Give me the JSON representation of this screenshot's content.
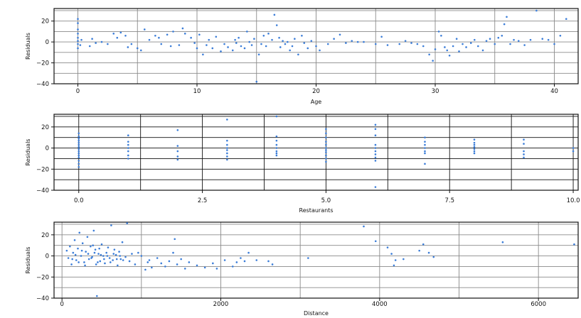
{
  "chart_data": [
    {
      "type": "scatter",
      "title": "",
      "xlabel": "Age",
      "ylabel": "Residuals",
      "xlim": [
        -2,
        42
      ],
      "ylim": [
        -40,
        32
      ],
      "xticks": [
        0,
        10,
        20,
        30,
        40
      ],
      "yticks": [
        -40,
        -20,
        0,
        20
      ],
      "grid_color": "#8a8a8a",
      "point_color": "#3b7dd8",
      "grid": true,
      "points": [
        [
          0,
          22
        ],
        [
          0,
          18
        ],
        [
          0,
          12
        ],
        [
          0,
          8
        ],
        [
          0,
          4
        ],
        [
          0,
          1
        ],
        [
          0,
          -2
        ],
        [
          0,
          -6
        ],
        [
          0.2,
          -3
        ],
        [
          0.3,
          2
        ],
        [
          1,
          -4
        ],
        [
          1.2,
          3
        ],
        [
          1.5,
          -1
        ],
        [
          2,
          0
        ],
        [
          2.5,
          -2
        ],
        [
          3,
          8
        ],
        [
          3.3,
          4
        ],
        [
          3.6,
          9
        ],
        [
          4,
          6
        ],
        [
          4.2,
          -5
        ],
        [
          4.5,
          -2
        ],
        [
          5,
          -6
        ],
        [
          5.3,
          -8
        ],
        [
          5.6,
          12
        ],
        [
          6,
          2
        ],
        [
          6.5,
          6
        ],
        [
          6.8,
          4
        ],
        [
          7,
          -2
        ],
        [
          7.5,
          7
        ],
        [
          7.8,
          -4
        ],
        [
          8,
          10
        ],
        [
          8.5,
          -3
        ],
        [
          8.8,
          13
        ],
        [
          9,
          8
        ],
        [
          9.5,
          4
        ],
        [
          9.8,
          -1
        ],
        [
          10,
          -6
        ],
        [
          10.2,
          7
        ],
        [
          10.5,
          -12
        ],
        [
          10.8,
          -3
        ],
        [
          11,
          2
        ],
        [
          11.3,
          -6
        ],
        [
          11.6,
          5
        ],
        [
          12,
          -9
        ],
        [
          12.3,
          -2
        ],
        [
          12.6,
          -5
        ],
        [
          13,
          -8
        ],
        [
          13.2,
          2
        ],
        [
          13.3,
          -1
        ],
        [
          13.5,
          4
        ],
        [
          13.7,
          -4
        ],
        [
          14,
          -6
        ],
        [
          14.2,
          10
        ],
        [
          14.4,
          0
        ],
        [
          14.6,
          -3
        ],
        [
          14.8,
          3
        ],
        [
          15,
          -38
        ],
        [
          15.2,
          -12
        ],
        [
          15.4,
          -2
        ],
        [
          15.6,
          6
        ],
        [
          15.8,
          -4
        ],
        [
          16,
          8
        ],
        [
          16.3,
          2
        ],
        [
          16.5,
          26
        ],
        [
          16.7,
          16
        ],
        [
          16.9,
          4
        ],
        [
          17,
          -5
        ],
        [
          17.2,
          1
        ],
        [
          17.4,
          -2
        ],
        [
          17.6,
          0
        ],
        [
          17.8,
          -8
        ],
        [
          18,
          -4
        ],
        [
          18.2,
          3
        ],
        [
          18.5,
          -12
        ],
        [
          18.8,
          6
        ],
        [
          19,
          -1
        ],
        [
          19.3,
          -6
        ],
        [
          19.6,
          1
        ],
        [
          20,
          -4
        ],
        [
          20.3,
          -8
        ],
        [
          21,
          -2
        ],
        [
          21.5,
          3
        ],
        [
          22,
          7
        ],
        [
          22.5,
          -1
        ],
        [
          23,
          1
        ],
        [
          23.5,
          0
        ],
        [
          24,
          0
        ],
        [
          25,
          -2
        ],
        [
          25.5,
          5
        ],
        [
          26,
          -3
        ],
        [
          27,
          -2
        ],
        [
          27.5,
          1
        ],
        [
          28,
          -1
        ],
        [
          28.5,
          -2
        ],
        [
          29,
          -4
        ],
        [
          29.5,
          -12
        ],
        [
          29.8,
          -18
        ],
        [
          30,
          -7
        ],
        [
          30.3,
          10
        ],
        [
          30.5,
          6
        ],
        [
          30.8,
          -5
        ],
        [
          31,
          -8
        ],
        [
          31.2,
          -13
        ],
        [
          31.5,
          -4
        ],
        [
          31.8,
          3
        ],
        [
          32,
          -9
        ],
        [
          32.3,
          -2
        ],
        [
          32.6,
          -5
        ],
        [
          33,
          -1
        ],
        [
          33.3,
          2
        ],
        [
          33.6,
          -4
        ],
        [
          34,
          -8
        ],
        [
          34.3,
          1
        ],
        [
          34.6,
          3
        ],
        [
          35,
          -2
        ],
        [
          35.3,
          4
        ],
        [
          35.6,
          6
        ],
        [
          35.8,
          17
        ],
        [
          36,
          24
        ],
        [
          36.3,
          -2
        ],
        [
          36.6,
          2
        ],
        [
          37,
          1
        ],
        [
          37.5,
          -3
        ],
        [
          38,
          2
        ],
        [
          38.5,
          30
        ],
        [
          39,
          3
        ],
        [
          39.5,
          2
        ],
        [
          40,
          -2
        ],
        [
          40.5,
          6
        ],
        [
          41,
          22
        ]
      ]
    },
    {
      "type": "scatter",
      "title": "",
      "xlabel": "Restaurants",
      "ylabel": "Residuals",
      "xlim": [
        -0.5,
        10.1
      ],
      "ylim": [
        -40,
        32
      ],
      "xticks": [
        0.0,
        2.5,
        5.0,
        7.5,
        10.0
      ],
      "xtick_labels": [
        "0.0",
        "2.5",
        "5.0",
        "7.5",
        "10.0"
      ],
      "yticks": [
        -40,
        -20,
        0,
        20
      ],
      "grid_color": "#111111",
      "point_color": "#3b7dd8",
      "grid": true,
      "points": [
        [
          0,
          14
        ],
        [
          0,
          11
        ],
        [
          0,
          9
        ],
        [
          0,
          7
        ],
        [
          0,
          5
        ],
        [
          0,
          3
        ],
        [
          0,
          1
        ],
        [
          0,
          -1
        ],
        [
          0,
          -3
        ],
        [
          0,
          -5
        ],
        [
          0,
          -7
        ],
        [
          0,
          -9
        ],
        [
          0,
          -12
        ],
        [
          0,
          -15
        ],
        [
          0,
          -18
        ],
        [
          1,
          12
        ],
        [
          1,
          6
        ],
        [
          1,
          3
        ],
        [
          1,
          0
        ],
        [
          1,
          -3
        ],
        [
          1,
          -7
        ],
        [
          1,
          -10
        ],
        [
          2,
          17
        ],
        [
          2,
          2
        ],
        [
          2,
          -3
        ],
        [
          2,
          -8
        ],
        [
          2,
          -11
        ],
        [
          3,
          27
        ],
        [
          3,
          7
        ],
        [
          3,
          3
        ],
        [
          3,
          0
        ],
        [
          3,
          -2
        ],
        [
          3,
          -5
        ],
        [
          3,
          -8
        ],
        [
          3,
          -11
        ],
        [
          4,
          30
        ],
        [
          4,
          11
        ],
        [
          4,
          7
        ],
        [
          4,
          3
        ],
        [
          4,
          0
        ],
        [
          4,
          -3
        ],
        [
          4,
          -5
        ],
        [
          4,
          -7
        ],
        [
          5,
          18
        ],
        [
          5,
          14
        ],
        [
          5,
          10
        ],
        [
          5,
          6
        ],
        [
          5,
          3
        ],
        [
          5,
          0
        ],
        [
          5,
          -2
        ],
        [
          5,
          -4
        ],
        [
          5,
          -7
        ],
        [
          5,
          -10
        ],
        [
          5,
          -13
        ],
        [
          6,
          22
        ],
        [
          6,
          18
        ],
        [
          6,
          12
        ],
        [
          6,
          3
        ],
        [
          6,
          0
        ],
        [
          6,
          -3
        ],
        [
          6,
          -6
        ],
        [
          6,
          -9
        ],
        [
          6,
          -12
        ],
        [
          6,
          -37
        ],
        [
          7,
          10
        ],
        [
          7,
          6
        ],
        [
          7,
          3
        ],
        [
          7,
          0
        ],
        [
          7,
          -3
        ],
        [
          7,
          -5
        ],
        [
          7,
          -15
        ],
        [
          8,
          8
        ],
        [
          8,
          5
        ],
        [
          8,
          3
        ],
        [
          8,
          1
        ],
        [
          8,
          -1
        ],
        [
          8,
          -3
        ],
        [
          8,
          -5
        ],
        [
          9,
          8
        ],
        [
          9,
          4
        ],
        [
          9,
          -3
        ],
        [
          9,
          -6
        ],
        [
          9,
          -9
        ],
        [
          10,
          0
        ],
        [
          10,
          -3
        ]
      ]
    },
    {
      "type": "scatter",
      "title": "",
      "xlabel": "Distance",
      "ylabel": "Residuals",
      "xlim": [
        -100,
        6500
      ],
      "ylim": [
        -40,
        32
      ],
      "xticks": [
        0,
        2000,
        4000,
        6000
      ],
      "yticks": [
        -40,
        -20,
        0,
        20
      ],
      "grid_color": "#8a8a8a",
      "point_color": "#3b7dd8",
      "grid": true,
      "points": [
        [
          60,
          5
        ],
        [
          80,
          -2
        ],
        [
          100,
          9
        ],
        [
          120,
          -8
        ],
        [
          140,
          3
        ],
        [
          160,
          15
        ],
        [
          180,
          -4
        ],
        [
          200,
          7
        ],
        [
          220,
          22
        ],
        [
          240,
          0
        ],
        [
          260,
          12
        ],
        [
          280,
          -6
        ],
        [
          300,
          4
        ],
        [
          320,
          18
        ],
        [
          340,
          -3
        ],
        [
          360,
          9
        ],
        [
          380,
          -1
        ],
        [
          400,
          24
        ],
        [
          420,
          6
        ],
        [
          440,
          -38
        ],
        [
          460,
          2
        ],
        [
          480,
          -5
        ],
        [
          500,
          11
        ],
        [
          520,
          0
        ],
        [
          540,
          -7
        ],
        [
          560,
          3
        ],
        [
          580,
          8
        ],
        [
          600,
          -2
        ],
        [
          620,
          29
        ],
        [
          640,
          -4
        ],
        [
          660,
          6
        ],
        [
          680,
          1
        ],
        [
          700,
          -9
        ],
        [
          720,
          4
        ],
        [
          740,
          -3
        ],
        [
          760,
          13
        ],
        [
          800,
          -1
        ],
        [
          820,
          31
        ],
        [
          850,
          -5
        ],
        [
          880,
          2
        ],
        [
          920,
          -8
        ],
        [
          960,
          3
        ],
        [
          1000,
          0
        ],
        [
          1050,
          -13
        ],
        [
          1080,
          -6
        ],
        [
          1100,
          -4
        ],
        [
          1130,
          -11
        ],
        [
          1200,
          -2
        ],
        [
          1250,
          -7
        ],
        [
          1300,
          -10
        ],
        [
          1350,
          -5
        ],
        [
          1400,
          3
        ],
        [
          1420,
          16
        ],
        [
          1450,
          -8
        ],
        [
          1500,
          -3
        ],
        [
          1550,
          -12
        ],
        [
          1600,
          -6
        ],
        [
          1700,
          -9
        ],
        [
          1800,
          -11
        ],
        [
          1900,
          -7
        ],
        [
          1950,
          -12
        ],
        [
          2050,
          -4
        ],
        [
          2150,
          -10
        ],
        [
          2200,
          -6
        ],
        [
          2250,
          -2
        ],
        [
          2300,
          -5
        ],
        [
          2350,
          3
        ],
        [
          2450,
          -4
        ],
        [
          2600,
          -5
        ],
        [
          2650,
          -8
        ],
        [
          3100,
          -2
        ],
        [
          3800,
          28
        ],
        [
          3950,
          14
        ],
        [
          4100,
          8
        ],
        [
          4150,
          2
        ],
        [
          4200,
          -4
        ],
        [
          4180,
          -9
        ],
        [
          4300,
          -3
        ],
        [
          4500,
          5
        ],
        [
          4550,
          11
        ],
        [
          4620,
          3
        ],
        [
          4680,
          -1
        ],
        [
          5550,
          13
        ],
        [
          6450,
          11
        ],
        [
          130,
          -3
        ],
        [
          170,
          1
        ],
        [
          210,
          -6
        ],
        [
          250,
          5
        ],
        [
          290,
          -9
        ],
        [
          330,
          2
        ],
        [
          370,
          -2
        ],
        [
          410,
          3
        ],
        [
          450,
          -6
        ],
        [
          490,
          1
        ],
        [
          530,
          -3
        ],
        [
          570,
          0
        ],
        [
          610,
          -6
        ],
        [
          650,
          2
        ],
        [
          690,
          -3
        ],
        [
          730,
          0
        ],
        [
          770,
          -4
        ],
        [
          390,
          10
        ],
        [
          430,
          -8
        ],
        [
          470,
          7
        ]
      ]
    }
  ]
}
